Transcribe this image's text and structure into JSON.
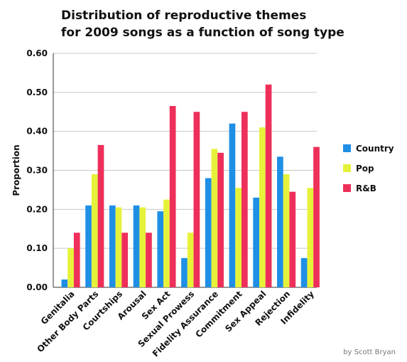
{
  "chart_data": {
    "type": "bar",
    "title_lines": [
      "Distribution of reproductive themes",
      "for 2009 songs as a function of song type"
    ],
    "xlabel": "",
    "ylabel": "Proportion",
    "ylim": [
      0,
      0.6
    ],
    "yticks": [
      "0.00",
      "0.10",
      "0.20",
      "0.30",
      "0.40",
      "0.50",
      "0.60"
    ],
    "grid": true,
    "legend_position": "right",
    "categories": [
      "Genitalia",
      "Other Body Parts",
      "Courtships",
      "Arousal",
      "Sex Act",
      "Sexual Prowess",
      "Fidelity Assurance",
      "Commitment",
      "Sex Appeal",
      "Rejection",
      "Infidelity"
    ],
    "series": [
      {
        "name": "Country",
        "color": "#1f8fe5",
        "values": [
          0.02,
          0.21,
          0.21,
          0.21,
          0.195,
          0.075,
          0.28,
          0.42,
          0.23,
          0.335,
          0.075
        ]
      },
      {
        "name": "Pop",
        "color": "#e6f23a",
        "values": [
          0.1,
          0.29,
          0.205,
          0.205,
          0.225,
          0.14,
          0.355,
          0.255,
          0.41,
          0.29,
          0.255
        ]
      },
      {
        "name": "R&B",
        "color": "#ee2f5a",
        "values": [
          0.14,
          0.365,
          0.14,
          0.14,
          0.465,
          0.45,
          0.345,
          0.45,
          0.52,
          0.245,
          0.36
        ]
      }
    ]
  },
  "credit": "by Scott Bryan"
}
